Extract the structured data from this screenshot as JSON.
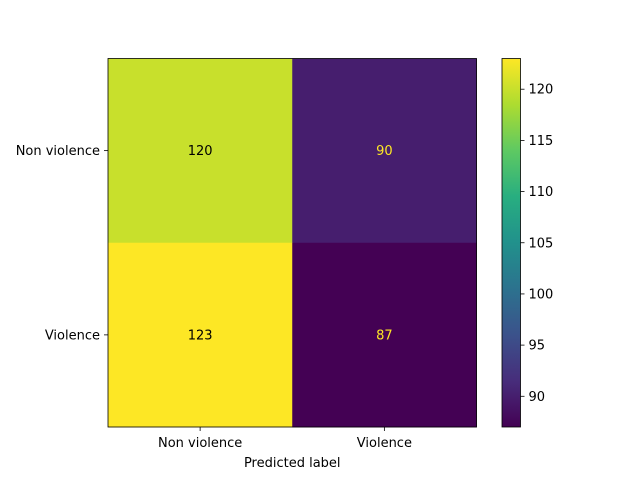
{
  "chart_data": {
    "type": "heatmap",
    "subtype": "confusion-matrix",
    "title": "",
    "xlabel": "Predicted label",
    "ylabel": "",
    "x_categories": [
      "Non violence",
      "Violence"
    ],
    "y_categories": [
      "Non violence",
      "Violence"
    ],
    "matrix": [
      [
        120,
        90
      ],
      [
        123,
        87
      ]
    ],
    "colormap": "viridis",
    "color_range": [
      87,
      123
    ],
    "colorbar_ticks": [
      90,
      95,
      100,
      105,
      110,
      115,
      120
    ],
    "grid": false,
    "colorbar_position": "right"
  }
}
